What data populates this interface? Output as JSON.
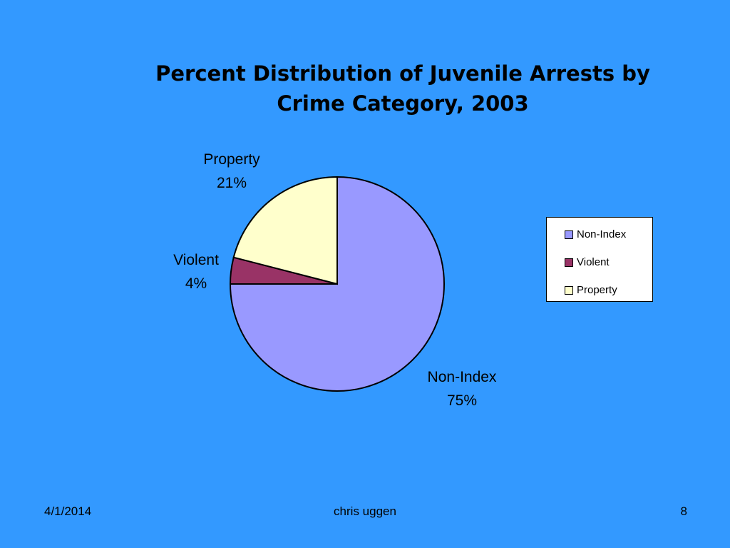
{
  "slide": {
    "title_line1": "Percent Distribution of Juvenile Arrests by",
    "title_line2": "Crime Category, 2003",
    "background_color": "#3399ff"
  },
  "chart_data": {
    "type": "pie",
    "title": "Percent Distribution of Juvenile Arrests by Crime Category, 2003",
    "slices": [
      {
        "name": "Non-Index",
        "value": 75,
        "label": "75%",
        "color": "#9999ff"
      },
      {
        "name": "Violent",
        "value": 4,
        "label": "4%",
        "color": "#993366"
      },
      {
        "name": "Property",
        "value": 21,
        "label": "21%",
        "color": "#ffffcc"
      }
    ],
    "legend": {
      "placement": "right",
      "entries": [
        "Non-Index",
        "Violent",
        "Property"
      ]
    }
  },
  "footer": {
    "date": "4/1/2014",
    "author": "chris uggen",
    "page_number": "8"
  }
}
